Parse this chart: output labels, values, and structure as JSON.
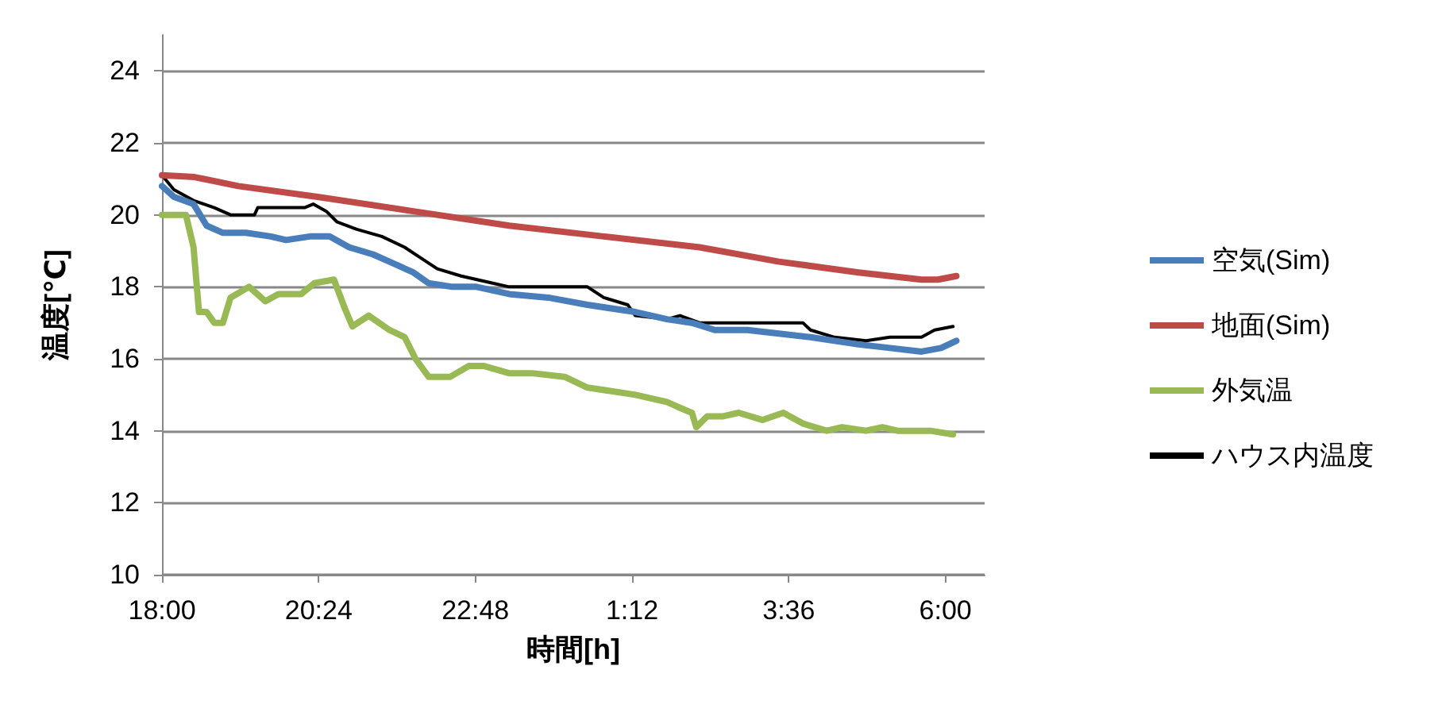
{
  "chart_data": {
    "type": "line",
    "xlabel": "時間[h]",
    "ylabel": "温度[℃]",
    "xlim": [
      "2000-01-01T18:00",
      "2000-01-02T06:36"
    ],
    "ylim": [
      10,
      25
    ],
    "xticks": [
      {
        "value": "2000-01-01T18:00",
        "label": "18:00"
      },
      {
        "value": "2000-01-01T20:24",
        "label": "20:24"
      },
      {
        "value": "2000-01-01T22:48",
        "label": "22:48"
      },
      {
        "value": "2000-01-02T01:12",
        "label": "1:12"
      },
      {
        "value": "2000-01-02T03:36",
        "label": "3:36"
      },
      {
        "value": "2000-01-02T06:00",
        "label": "6:00"
      }
    ],
    "yticks": [
      10,
      12,
      14,
      16,
      18,
      20,
      22,
      24
    ],
    "grid": "y",
    "legend": "right",
    "marker": "none",
    "line_style": "solid",
    "series": [
      {
        "name": "空気(Sim)",
        "color": "#4a7ebb",
        "x": [
          "2000-01-01T18:00",
          "2000-01-01T18:11",
          "2000-01-01T18:29",
          "2000-01-01T18:41",
          "2000-01-01T18:56",
          "2000-01-01T19:17",
          "2000-01-01T19:40",
          "2000-01-01T19:54",
          "2000-01-01T20:16",
          "2000-01-01T20:34",
          "2000-01-01T20:52",
          "2000-01-01T21:14",
          "2000-01-01T21:29",
          "2000-01-01T21:51",
          "2000-01-01T22:05",
          "2000-01-01T22:27",
          "2000-01-01T22:49",
          "2000-01-01T23:19",
          "2000-01-01T23:55",
          "2000-01-02T00:31",
          "2000-01-02T01:15",
          "2000-01-02T01:44",
          "2000-01-02T02:07",
          "2000-01-02T02:28",
          "2000-01-02T02:58",
          "2000-01-02T03:27",
          "2000-01-02T03:56",
          "2000-01-02T04:18",
          "2000-01-02T04:40",
          "2000-01-02T05:09",
          "2000-01-02T05:38",
          "2000-01-02T05:56",
          "2000-01-02T06:10"
        ],
        "values": [
          20.8,
          20.5,
          20.3,
          19.7,
          19.5,
          19.5,
          19.4,
          19.3,
          19.4,
          19.4,
          19.1,
          18.9,
          18.7,
          18.4,
          18.1,
          18.0,
          18.0,
          17.8,
          17.7,
          17.5,
          17.3,
          17.1,
          17.0,
          16.8,
          16.8,
          16.7,
          16.6,
          16.5,
          16.4,
          16.3,
          16.2,
          16.3,
          16.5
        ]
      },
      {
        "name": "地面(Sim)",
        "color": "#be4b48",
        "x": [
          "2000-01-01T18:00",
          "2000-01-01T18:30",
          "2000-01-01T19:10",
          "2000-01-01T20:23",
          "2000-01-01T21:51",
          "2000-01-01T23:19",
          "2000-01-02T00:46",
          "2000-01-02T02:14",
          "2000-01-02T03:27",
          "2000-01-02T04:40",
          "2000-01-02T05:38",
          "2000-01-02T05:53",
          "2000-01-02T06:10"
        ],
        "values": [
          21.1,
          21.05,
          20.8,
          20.5,
          20.1,
          19.7,
          19.4,
          19.1,
          18.7,
          18.4,
          18.2,
          18.2,
          18.3
        ]
      },
      {
        "name": "外気温",
        "color": "#98b954",
        "x": [
          "2000-01-01T18:00",
          "2000-01-01T18:22",
          "2000-01-01T18:29",
          "2000-01-01T18:34",
          "2000-01-01T18:41",
          "2000-01-01T18:48",
          "2000-01-01T18:56",
          "2000-01-01T19:03",
          "2000-01-01T19:20",
          "2000-01-01T19:35",
          "2000-01-01T19:47",
          "2000-01-01T20:08",
          "2000-01-01T20:20",
          "2000-01-01T20:38",
          "2000-01-01T20:48",
          "2000-01-01T20:55",
          "2000-01-01T21:10",
          "2000-01-01T21:29",
          "2000-01-01T21:43",
          "2000-01-01T21:53",
          "2000-01-01T22:05",
          "2000-01-01T22:25",
          "2000-01-01T22:42",
          "2000-01-01T22:56",
          "2000-01-01T23:19",
          "2000-01-01T23:40",
          "2000-01-02T00:10",
          "2000-01-02T00:31",
          "2000-01-02T00:53",
          "2000-01-02T01:15",
          "2000-01-02T01:44",
          "2000-01-02T01:59",
          "2000-01-02T02:07",
          "2000-01-02T02:11",
          "2000-01-02T02:21",
          "2000-01-02T02:35",
          "2000-01-02T02:50",
          "2000-01-02T03:12",
          "2000-01-02T03:31",
          "2000-01-02T03:49",
          "2000-01-02T04:11",
          "2000-01-02T04:25",
          "2000-01-02T04:47",
          "2000-01-02T05:02",
          "2000-01-02T05:16",
          "2000-01-02T05:46",
          "2000-01-02T06:07"
        ],
        "values": [
          20.0,
          20.0,
          19.1,
          17.3,
          17.3,
          17.0,
          17.0,
          17.7,
          18.0,
          17.6,
          17.8,
          17.8,
          18.1,
          18.2,
          17.4,
          16.9,
          17.2,
          16.8,
          16.6,
          16.0,
          15.5,
          15.5,
          15.8,
          15.8,
          15.6,
          15.6,
          15.5,
          15.2,
          15.1,
          15.0,
          14.8,
          14.6,
          14.5,
          14.1,
          14.4,
          14.4,
          14.5,
          14.3,
          14.5,
          14.2,
          14.0,
          14.1,
          14.0,
          14.1,
          14.0,
          14.0,
          13.9
        ]
      },
      {
        "name": "ハウス内温度",
        "color": "#000000",
        "x": [
          "2000-01-01T18:00",
          "2000-01-01T18:11",
          "2000-01-01T18:29",
          "2000-01-01T18:48",
          "2000-01-01T19:03",
          "2000-01-01T19:25",
          "2000-01-01T19:28",
          "2000-01-01T20:11",
          "2000-01-01T20:19",
          "2000-01-01T20:31",
          "2000-01-01T20:41",
          "2000-01-01T20:59",
          "2000-01-01T21:22",
          "2000-01-01T21:43",
          "2000-01-01T21:58",
          "2000-01-01T22:13",
          "2000-01-01T22:35",
          "2000-01-01T23:04",
          "2000-01-01T23:19",
          "2000-01-02T00:31",
          "2000-01-02T00:46",
          "2000-01-02T01:08",
          "2000-01-02T01:15",
          "2000-01-02T01:44",
          "2000-01-02T01:56",
          "2000-01-02T02:14",
          "2000-01-02T03:49",
          "2000-01-02T03:56",
          "2000-01-02T04:18",
          "2000-01-02T04:47",
          "2000-01-02T05:09",
          "2000-01-02T05:38",
          "2000-01-02T05:50",
          "2000-01-02T06:07"
        ],
        "values": [
          21.1,
          20.7,
          20.4,
          20.2,
          20.0,
          20.0,
          20.2,
          20.2,
          20.3,
          20.1,
          19.8,
          19.6,
          19.4,
          19.1,
          18.8,
          18.5,
          18.3,
          18.1,
          18.0,
          18.0,
          17.7,
          17.5,
          17.2,
          17.1,
          17.2,
          17.0,
          17.0,
          16.8,
          16.6,
          16.5,
          16.6,
          16.6,
          16.8,
          16.9
        ]
      }
    ]
  }
}
